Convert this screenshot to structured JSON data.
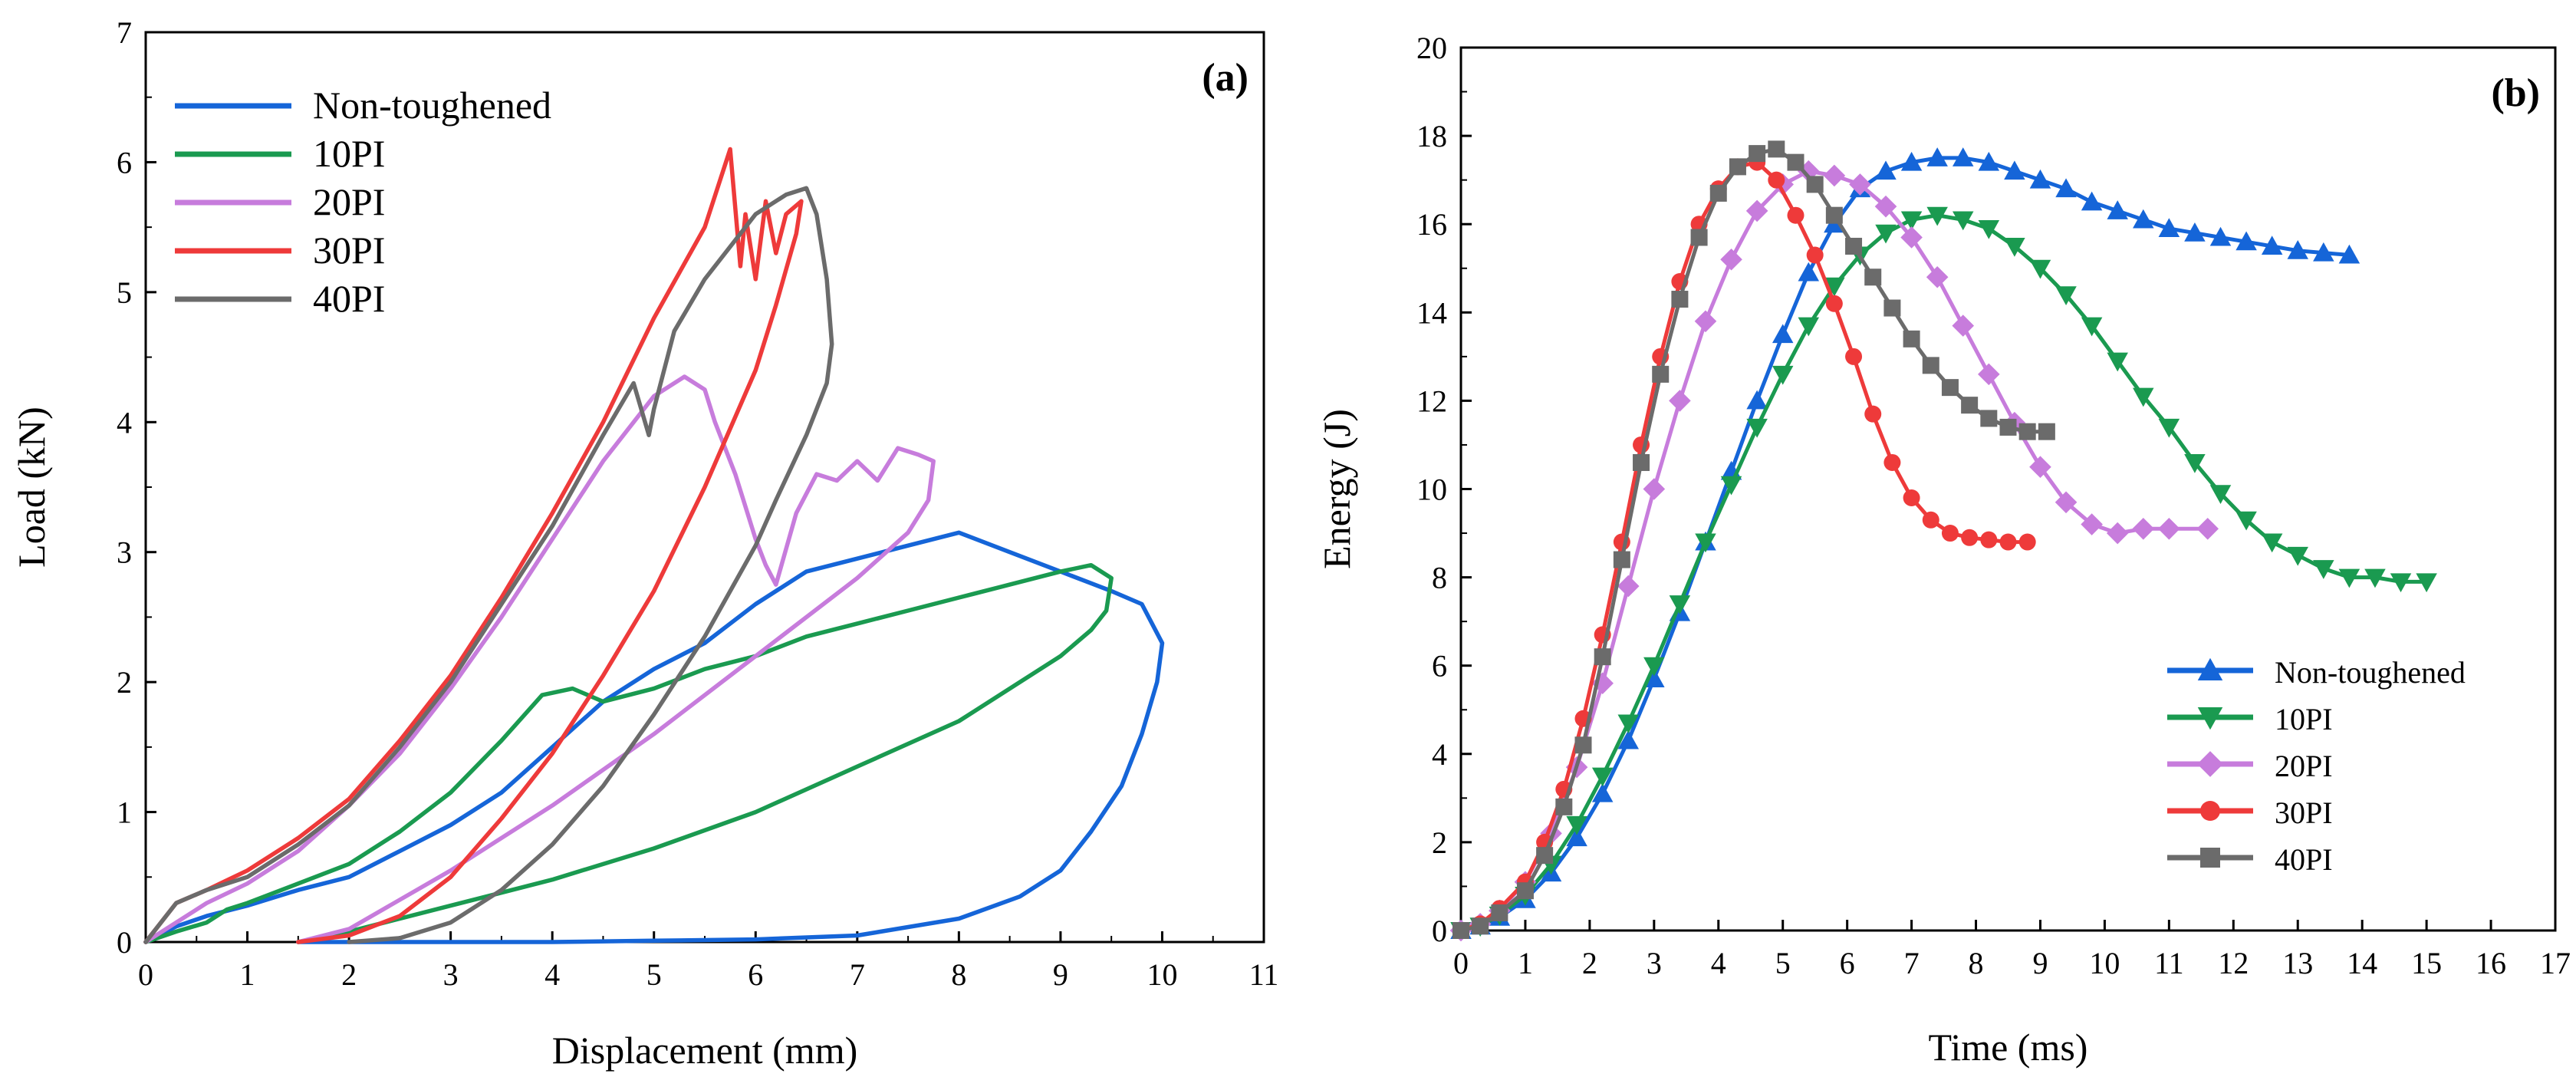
{
  "chart_data": [
    {
      "panel": "(a)",
      "type": "line",
      "xlabel": "Displacement (mm)",
      "ylabel": "Load (kN)",
      "xlim": [
        0,
        11
      ],
      "ylim": [
        0,
        7
      ],
      "xticks": [
        "0",
        "1",
        "2",
        "3",
        "4",
        "5",
        "6",
        "7",
        "8",
        "9",
        "10",
        "11"
      ],
      "yticks": [
        "0",
        "1",
        "2",
        "3",
        "4",
        "5",
        "6",
        "7"
      ],
      "legend_position": "top-left",
      "series": [
        {
          "name": "Non-toughened",
          "color": "#1565d8",
          "x": [
            0,
            0.3,
            0.6,
            1.0,
            1.5,
            2.0,
            2.5,
            3.0,
            3.5,
            4.0,
            4.5,
            5.0,
            5.5,
            6.0,
            6.5,
            7.0,
            7.5,
            8.0,
            8.5,
            9.0,
            9.5,
            9.8,
            10.0,
            9.95,
            9.8,
            9.6,
            9.3,
            9.0,
            8.6,
            8.0,
            7.0,
            6.0,
            5.0,
            4.0,
            3.0,
            2.0,
            1.5
          ],
          "y": [
            0,
            0.12,
            0.2,
            0.28,
            0.4,
            0.5,
            0.7,
            0.9,
            1.15,
            1.5,
            1.85,
            2.1,
            2.3,
            2.6,
            2.85,
            2.95,
            3.05,
            3.15,
            3.0,
            2.85,
            2.7,
            2.6,
            2.3,
            2.0,
            1.6,
            1.2,
            0.85,
            0.55,
            0.35,
            0.18,
            0.05,
            0.02,
            0.01,
            0.0,
            0.0,
            0.0,
            0.0
          ]
        },
        {
          "name": "10PI",
          "color": "#1a9a50",
          "x": [
            0,
            0.3,
            0.6,
            0.8,
            1.0,
            1.5,
            2.0,
            2.5,
            3.0,
            3.5,
            3.9,
            4.2,
            4.5,
            5.0,
            5.5,
            6.0,
            6.5,
            7.0,
            7.5,
            8.0,
            8.5,
            9.0,
            9.3,
            9.5,
            9.45,
            9.3,
            9.0,
            8.0,
            7.0,
            6.0,
            5.0,
            4.0,
            3.0,
            2.0,
            1.5
          ],
          "y": [
            0,
            0.08,
            0.15,
            0.25,
            0.3,
            0.45,
            0.6,
            0.85,
            1.15,
            1.55,
            1.9,
            1.95,
            1.85,
            1.95,
            2.1,
            2.2,
            2.35,
            2.45,
            2.55,
            2.65,
            2.75,
            2.85,
            2.9,
            2.8,
            2.55,
            2.4,
            2.2,
            1.7,
            1.35,
            1.0,
            0.72,
            0.48,
            0.28,
            0.08,
            0.0
          ]
        },
        {
          "name": "20PI",
          "color": "#c77cdc",
          "x": [
            0,
            0.3,
            0.6,
            1.0,
            1.5,
            2.0,
            2.5,
            3.0,
            3.5,
            4.0,
            4.5,
            5.0,
            5.3,
            5.5,
            5.6,
            5.8,
            6.0,
            6.1,
            6.2,
            6.4,
            6.6,
            6.8,
            7.0,
            7.2,
            7.4,
            7.6,
            7.75,
            7.7,
            7.5,
            7.0,
            6.0,
            5.0,
            4.0,
            3.0,
            2.0,
            1.5
          ],
          "y": [
            0,
            0.15,
            0.3,
            0.45,
            0.7,
            1.05,
            1.45,
            1.95,
            2.5,
            3.1,
            3.7,
            4.2,
            4.35,
            4.25,
            4.0,
            3.6,
            3.1,
            2.9,
            2.75,
            3.3,
            3.6,
            3.55,
            3.7,
            3.55,
            3.8,
            3.75,
            3.7,
            3.4,
            3.15,
            2.8,
            2.2,
            1.6,
            1.05,
            0.55,
            0.1,
            0.0
          ]
        },
        {
          "name": "30PI",
          "color": "#ee3a3a",
          "x": [
            0,
            0.3,
            0.6,
            1.0,
            1.5,
            2.0,
            2.5,
            3.0,
            3.5,
            4.0,
            4.5,
            5.0,
            5.5,
            5.75,
            5.85,
            5.9,
            6.0,
            6.1,
            6.2,
            6.3,
            6.45,
            6.4,
            6.2,
            6.0,
            5.5,
            5.0,
            4.5,
            4.0,
            3.5,
            3.0,
            2.5,
            2.0,
            1.5
          ],
          "y": [
            0,
            0.3,
            0.4,
            0.55,
            0.8,
            1.1,
            1.55,
            2.05,
            2.65,
            3.3,
            4.0,
            4.8,
            5.5,
            6.1,
            5.2,
            5.6,
            5.1,
            5.7,
            5.3,
            5.6,
            5.7,
            5.45,
            4.9,
            4.4,
            3.5,
            2.7,
            2.05,
            1.45,
            0.95,
            0.5,
            0.2,
            0.05,
            0.0
          ]
        },
        {
          "name": "40PI",
          "color": "#6b6b6b",
          "x": [
            0,
            0.3,
            0.6,
            1.0,
            1.5,
            2.0,
            2.5,
            3.0,
            3.5,
            4.0,
            4.5,
            4.8,
            4.95,
            5.0,
            5.2,
            5.5,
            5.8,
            6.0,
            6.3,
            6.5,
            6.6,
            6.7,
            6.75,
            6.7,
            6.5,
            6.2,
            6.0,
            5.5,
            5.0,
            4.5,
            4.0,
            3.5,
            3.0,
            2.5,
            2.0
          ],
          "y": [
            0,
            0.3,
            0.4,
            0.5,
            0.75,
            1.05,
            1.5,
            2.0,
            2.6,
            3.2,
            3.9,
            4.3,
            3.9,
            4.1,
            4.7,
            5.1,
            5.4,
            5.6,
            5.75,
            5.8,
            5.6,
            5.1,
            4.6,
            4.3,
            3.9,
            3.4,
            3.05,
            2.35,
            1.75,
            1.2,
            0.75,
            0.4,
            0.15,
            0.03,
            0.0
          ]
        }
      ]
    },
    {
      "panel": "(b)",
      "type": "line",
      "xlabel": "Time (ms)",
      "ylabel": "Energy (J)",
      "xlim": [
        0,
        17
      ],
      "ylim": [
        0,
        20
      ],
      "xticks": [
        "0",
        "1",
        "2",
        "3",
        "4",
        "5",
        "6",
        "7",
        "8",
        "9",
        "10",
        "11",
        "12",
        "13",
        "14",
        "15",
        "16",
        "17"
      ],
      "yticks": [
        "0",
        "2",
        "4",
        "6",
        "8",
        "10",
        "12",
        "14",
        "16",
        "18",
        "20"
      ],
      "legend_position": "bottom-right",
      "series": [
        {
          "name": "Non-toughened",
          "color": "#1565d8",
          "marker": "triangle-up",
          "x": [
            0,
            0.3,
            0.6,
            1.0,
            1.4,
            1.8,
            2.2,
            2.6,
            3.0,
            3.4,
            3.8,
            4.2,
            4.6,
            5.0,
            5.4,
            5.8,
            6.2,
            6.6,
            7.0,
            7.4,
            7.8,
            8.2,
            8.6,
            9.0,
            9.4,
            9.8,
            10.2,
            10.6,
            11.0,
            11.4,
            11.8,
            12.2,
            12.6,
            13.0,
            13.4,
            13.8
          ],
          "y": [
            0,
            0.1,
            0.3,
            0.7,
            1.3,
            2.1,
            3.1,
            4.3,
            5.7,
            7.2,
            8.8,
            10.4,
            12.0,
            13.5,
            14.9,
            16.0,
            16.8,
            17.2,
            17.4,
            17.5,
            17.5,
            17.4,
            17.2,
            17.0,
            16.8,
            16.5,
            16.3,
            16.1,
            15.9,
            15.8,
            15.7,
            15.6,
            15.5,
            15.4,
            15.35,
            15.3
          ]
        },
        {
          "name": "10PI",
          "color": "#1a9a50",
          "marker": "triangle-down",
          "x": [
            0,
            0.3,
            0.6,
            1.0,
            1.4,
            1.8,
            2.2,
            2.6,
            3.0,
            3.4,
            3.8,
            4.2,
            4.6,
            5.0,
            5.4,
            5.8,
            6.2,
            6.6,
            7.0,
            7.4,
            7.8,
            8.2,
            8.6,
            9.0,
            9.4,
            9.8,
            10.2,
            10.6,
            11.0,
            11.4,
            11.8,
            12.2,
            12.6,
            13.0,
            13.4,
            13.8,
            14.2,
            14.6,
            15.0
          ],
          "y": [
            0,
            0.1,
            0.35,
            0.8,
            1.5,
            2.4,
            3.5,
            4.7,
            6.0,
            7.4,
            8.8,
            10.1,
            11.4,
            12.6,
            13.7,
            14.6,
            15.3,
            15.8,
            16.1,
            16.2,
            16.1,
            15.9,
            15.5,
            15.0,
            14.4,
            13.7,
            12.9,
            12.1,
            11.4,
            10.6,
            9.9,
            9.3,
            8.8,
            8.5,
            8.2,
            8.0,
            8.0,
            7.9,
            7.9
          ]
        },
        {
          "name": "20PI",
          "color": "#c77cdc",
          "marker": "diamond",
          "x": [
            0,
            0.3,
            0.6,
            1.0,
            1.4,
            1.8,
            2.2,
            2.6,
            3.0,
            3.4,
            3.8,
            4.2,
            4.6,
            5.0,
            5.4,
            5.8,
            6.2,
            6.6,
            7.0,
            7.4,
            7.8,
            8.2,
            8.6,
            9.0,
            9.4,
            9.8,
            10.2,
            10.6,
            11.0,
            11.6
          ],
          "y": [
            0,
            0.15,
            0.45,
            1.1,
            2.2,
            3.7,
            5.6,
            7.8,
            10.0,
            12.0,
            13.8,
            15.2,
            16.3,
            16.9,
            17.2,
            17.1,
            16.9,
            16.4,
            15.7,
            14.8,
            13.7,
            12.6,
            11.5,
            10.5,
            9.7,
            9.2,
            9.0,
            9.1,
            9.1,
            9.1
          ]
        },
        {
          "name": "30PI",
          "color": "#ee3a3a",
          "marker": "circle",
          "x": [
            0,
            0.3,
            0.6,
            1.0,
            1.3,
            1.6,
            1.9,
            2.2,
            2.5,
            2.8,
            3.1,
            3.4,
            3.7,
            4.0,
            4.3,
            4.6,
            4.9,
            5.2,
            5.5,
            5.8,
            6.1,
            6.4,
            6.7,
            7.0,
            7.3,
            7.6,
            7.9,
            8.2,
            8.5,
            8.8
          ],
          "y": [
            0,
            0.15,
            0.5,
            1.1,
            2.0,
            3.2,
            4.8,
            6.7,
            8.8,
            11.0,
            13.0,
            14.7,
            16.0,
            16.8,
            17.3,
            17.4,
            17.0,
            16.2,
            15.3,
            14.2,
            13.0,
            11.7,
            10.6,
            9.8,
            9.3,
            9.0,
            8.9,
            8.85,
            8.8,
            8.8
          ]
        },
        {
          "name": "40PI",
          "color": "#6b6b6b",
          "marker": "square",
          "x": [
            0,
            0.3,
            0.6,
            1.0,
            1.3,
            1.6,
            1.9,
            2.2,
            2.5,
            2.8,
            3.1,
            3.4,
            3.7,
            4.0,
            4.3,
            4.6,
            4.9,
            5.2,
            5.5,
            5.8,
            6.1,
            6.4,
            6.7,
            7.0,
            7.3,
            7.6,
            7.9,
            8.2,
            8.5,
            8.8,
            9.1
          ],
          "y": [
            0,
            0.1,
            0.4,
            0.9,
            1.7,
            2.8,
            4.2,
            6.2,
            8.4,
            10.6,
            12.6,
            14.3,
            15.7,
            16.7,
            17.3,
            17.6,
            17.7,
            17.4,
            16.9,
            16.2,
            15.5,
            14.8,
            14.1,
            13.4,
            12.8,
            12.3,
            11.9,
            11.6,
            11.4,
            11.3,
            11.3
          ]
        }
      ]
    }
  ]
}
